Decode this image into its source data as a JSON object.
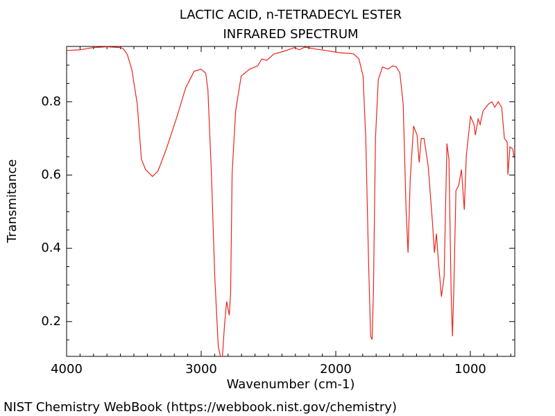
{
  "chart_data": {
    "type": "line",
    "title": "LACTIC ACID, n-TETRADECYL ESTER",
    "subtitle": "INFRARED SPECTRUM",
    "x_label": "Wavenumber (cm-1)",
    "y_label": "Transmitance",
    "footer": "NIST Chemistry WebBook (https://webbook.nist.gov/chemistry)",
    "xlim": [
      4000,
      670
    ],
    "ylim": [
      0.105,
      0.951
    ],
    "xticks": [
      4000,
      3000,
      2000,
      1000
    ],
    "yticks": [
      0.2,
      0.4,
      0.6,
      0.8
    ],
    "xminorticks": [
      3900,
      3800,
      3700,
      3600,
      3500,
      3400,
      3300,
      3200,
      3100,
      2900,
      2800,
      2700,
      2600,
      2500,
      2400,
      2300,
      2200,
      2100,
      1900,
      1800,
      1700,
      1600,
      1500,
      1400,
      1300,
      1200,
      1100,
      900,
      800,
      700
    ],
    "yminorticks": [
      0.15,
      0.25,
      0.3,
      0.35,
      0.45,
      0.5,
      0.55,
      0.65,
      0.7,
      0.75,
      0.85,
      0.9
    ],
    "x": [
      4000,
      3900,
      3800,
      3700,
      3600,
      3580,
      3550,
      3516,
      3475,
      3444,
      3413,
      3362,
      3321,
      3259,
      3182,
      3115,
      3053,
      3002,
      2966,
      2950,
      2924,
      2899,
      2873,
      2857,
      2842,
      2827,
      2811,
      2801,
      2791,
      2781,
      2770,
      2744,
      2703,
      2641,
      2580,
      2549,
      2513,
      2461,
      2384,
      2307,
      2271,
      2230,
      2152,
      2075,
      1972,
      1869,
      1828,
      1797,
      1777,
      1756,
      1741,
      1730,
      1720,
      1705,
      1684,
      1653,
      1612,
      1576,
      1550,
      1524,
      1499,
      1478,
      1463,
      1447,
      1422,
      1396,
      1380,
      1365,
      1344,
      1313,
      1282,
      1267,
      1252,
      1236,
      1215,
      1195,
      1174,
      1159,
      1143,
      1133,
      1123,
      1107,
      1087,
      1066,
      1045,
      1030,
      999,
      973,
      963,
      942,
      927,
      906,
      865,
      839,
      819,
      793,
      767,
      747,
      726,
      721,
      706,
      685,
      675
    ],
    "series": [
      {
        "name": "Transmitance",
        "color": "#e8241c",
        "values": [
          0.94,
          0.942,
          0.948,
          0.95,
          0.948,
          0.945,
          0.93,
          0.889,
          0.794,
          0.643,
          0.615,
          0.596,
          0.611,
          0.671,
          0.757,
          0.838,
          0.883,
          0.889,
          0.878,
          0.832,
          0.605,
          0.321,
          0.132,
          0.105,
          0.105,
          0.189,
          0.255,
          0.236,
          0.217,
          0.283,
          0.605,
          0.775,
          0.87,
          0.889,
          0.898,
          0.917,
          0.913,
          0.93,
          0.938,
          0.948,
          0.942,
          0.949,
          0.944,
          0.94,
          0.934,
          0.931,
          0.917,
          0.87,
          0.7,
          0.359,
          0.16,
          0.151,
          0.283,
          0.7,
          0.861,
          0.895,
          0.889,
          0.898,
          0.895,
          0.879,
          0.794,
          0.51,
          0.388,
          0.586,
          0.734,
          0.709,
          0.634,
          0.7,
          0.7,
          0.624,
          0.473,
          0.388,
          0.44,
          0.359,
          0.268,
          0.321,
          0.686,
          0.643,
          0.283,
          0.16,
          0.283,
          0.558,
          0.571,
          0.615,
          0.505,
          0.653,
          0.76,
          0.738,
          0.709,
          0.753,
          0.738,
          0.775,
          0.794,
          0.8,
          0.785,
          0.8,
          0.785,
          0.7,
          0.69,
          0.601,
          0.677,
          0.671,
          0.647
        ]
      }
    ]
  }
}
